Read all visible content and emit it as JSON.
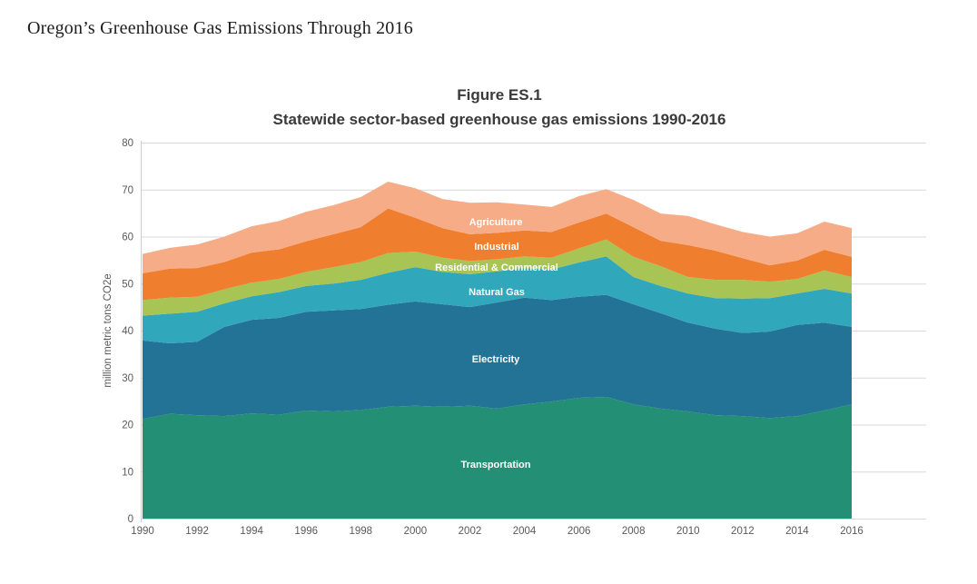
{
  "page": {
    "title": "Oregon’s Greenhouse Gas Emissions Through 2016"
  },
  "chart": {
    "title": "Figure ES.1",
    "subtitle": "Statewide sector-based greenhouse gas emissions 1990-2016"
  },
  "chart_data": {
    "type": "area",
    "stacked": true,
    "title": "Figure ES.1",
    "subtitle": "Statewide sector-based greenhouse gas emissions 1990-2016",
    "xlabel": "",
    "ylabel": "million metric tons CO2e",
    "ylim": [
      0,
      80
    ],
    "y_ticks": [
      0,
      10,
      20,
      30,
      40,
      50,
      60,
      70,
      80
    ],
    "x_ticks": [
      1990,
      1992,
      1994,
      1996,
      1998,
      2000,
      2002,
      2004,
      2006,
      2008,
      2010,
      2012,
      2014,
      2016
    ],
    "grid": true,
    "legend_position": "labels-inside-areas",
    "x": [
      1990,
      1991,
      1992,
      1993,
      1994,
      1995,
      1996,
      1997,
      1998,
      1999,
      2000,
      2001,
      2002,
      2003,
      2004,
      2005,
      2006,
      2007,
      2008,
      2009,
      2010,
      2011,
      2012,
      2013,
      2014,
      2015,
      2016
    ],
    "series": [
      {
        "key": "transportation",
        "name": "Transportation",
        "color": "#239076",
        "values": [
          21.2,
          22.3,
          22.0,
          21.8,
          22.4,
          22.1,
          23.0,
          22.8,
          23.1,
          23.8,
          24.0,
          23.8,
          24.0,
          23.4,
          24.3,
          24.9,
          25.7,
          25.9,
          24.3,
          23.4,
          22.8,
          22.0,
          21.8,
          21.4,
          21.8,
          23.0,
          24.3
        ]
      },
      {
        "key": "electricity",
        "name": "Electricity",
        "color": "#237396",
        "values": [
          16.7,
          15.0,
          15.6,
          19.0,
          19.9,
          20.6,
          21.0,
          21.5,
          21.5,
          21.7,
          22.2,
          21.8,
          21.0,
          22.6,
          22.7,
          21.6,
          21.5,
          21.7,
          21.3,
          20.3,
          18.9,
          18.4,
          17.7,
          18.4,
          19.4,
          18.7,
          16.5
        ]
      },
      {
        "key": "natural_gas",
        "name": "Natural Gas",
        "color": "#31a7bc",
        "values": [
          5.3,
          6.3,
          6.4,
          5.0,
          5.0,
          5.5,
          5.5,
          5.7,
          6.2,
          6.8,
          7.3,
          6.9,
          7.0,
          6.6,
          6.3,
          6.5,
          7.3,
          8.2,
          5.8,
          5.8,
          6.2,
          6.5,
          7.3,
          7.1,
          6.7,
          7.2,
          7.1
        ]
      },
      {
        "key": "residential_commercial",
        "name": "Residential & Commercial",
        "color": "#a8c454",
        "values": [
          3.3,
          3.4,
          3.2,
          3.0,
          2.9,
          2.8,
          3.0,
          3.5,
          3.8,
          4.2,
          3.3,
          3.0,
          2.8,
          2.6,
          2.5,
          2.5,
          3.0,
          3.6,
          4.3,
          4.2,
          3.5,
          3.9,
          4.0,
          3.5,
          3.1,
          3.9,
          3.5
        ]
      },
      {
        "key": "industrial",
        "name": "Industrial",
        "color": "#ef7f2e",
        "values": [
          5.7,
          6.2,
          6.1,
          5.8,
          6.4,
          6.3,
          6.5,
          7.0,
          7.4,
          9.5,
          7.2,
          6.3,
          5.7,
          5.6,
          5.5,
          5.5,
          5.5,
          5.5,
          6.3,
          5.4,
          6.8,
          6.2,
          4.6,
          3.5,
          3.9,
          4.4,
          4.3
        ]
      },
      {
        "key": "agriculture",
        "name": "Agriculture",
        "color": "#f6ad87",
        "values": [
          4.1,
          4.4,
          5.0,
          5.4,
          5.6,
          6.0,
          6.3,
          6.2,
          6.4,
          5.7,
          6.3,
          6.2,
          6.7,
          6.5,
          5.5,
          5.3,
          5.6,
          5.2,
          5.8,
          5.8,
          6.2,
          5.6,
          5.6,
          6.1,
          5.8,
          6.0,
          6.1
        ]
      }
    ],
    "colors": {
      "grid_line": "#d9d9d9",
      "axis_line": "#b8d4e0",
      "tick_text": "#595959",
      "series_label_text": "#ffffff"
    }
  }
}
